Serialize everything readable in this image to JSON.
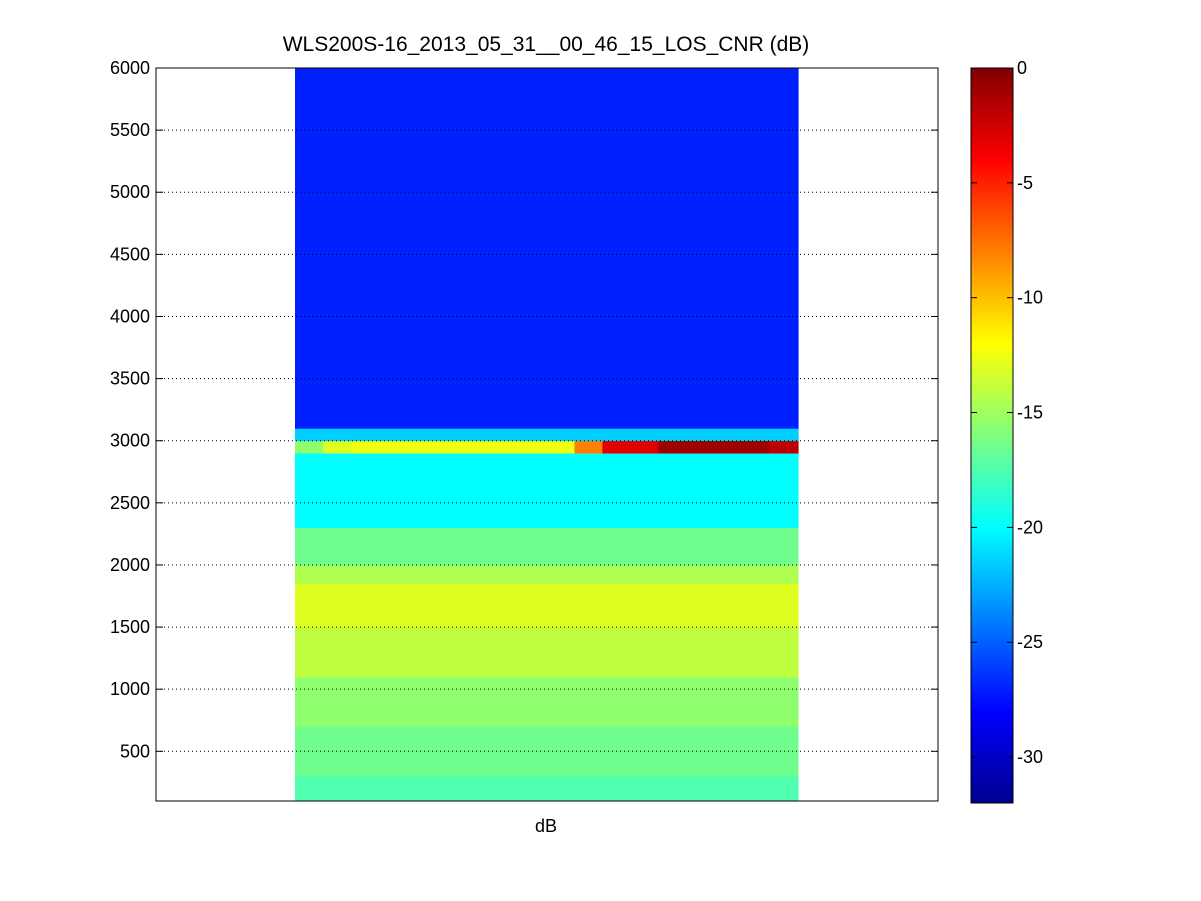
{
  "chart_data": {
    "type": "heatmap",
    "title": "WLS200S-16_2013_05_31__00_46_15_LOS_CNR (dB)",
    "xlabel": "dB",
    "ylabel": "",
    "ylim": [
      100,
      6000
    ],
    "y_ticks": [
      500,
      1000,
      1500,
      2000,
      2500,
      3000,
      3500,
      4000,
      4500,
      5000,
      5500,
      6000
    ],
    "grid": "y dotted",
    "colormap": "jet",
    "colorbar": {
      "range": [
        -32,
        0
      ],
      "ticks": [
        0,
        -5,
        -10,
        -15,
        -20,
        -25,
        -30
      ],
      "placement": "right"
    },
    "columns": 18,
    "bands": [
      {
        "y_from": 100,
        "y_to": 300,
        "value": -17.5
      },
      {
        "y_from": 300,
        "y_to": 700,
        "value": -16.5
      },
      {
        "y_from": 700,
        "y_to": 1100,
        "value": -15.5
      },
      {
        "y_from": 1100,
        "y_to": 1500,
        "value": -14.0
      },
      {
        "y_from": 1500,
        "y_to": 1850,
        "value": -13.0
      },
      {
        "y_from": 1850,
        "y_to": 2000,
        "value": -14.5
      },
      {
        "y_from": 2000,
        "y_to": 2300,
        "value": -16.5
      },
      {
        "y_from": 2300,
        "y_to": 2900,
        "value": -20.0
      },
      {
        "y_from": 2900,
        "y_to": 3000,
        "values": [
          -15.5,
          -13.0,
          -12.5,
          -12.5,
          -12.5,
          -12.5,
          -12.5,
          -12.5,
          -12.5,
          -12.5,
          -8.0,
          -3.0,
          -3.0,
          -1.0,
          -1.0,
          -1.0,
          -1.0,
          -2.0
        ]
      },
      {
        "y_from": 3000,
        "y_to": 3100,
        "value": -21.5
      },
      {
        "y_from": 3100,
        "y_to": 6000,
        "value": -27.0
      }
    ]
  }
}
